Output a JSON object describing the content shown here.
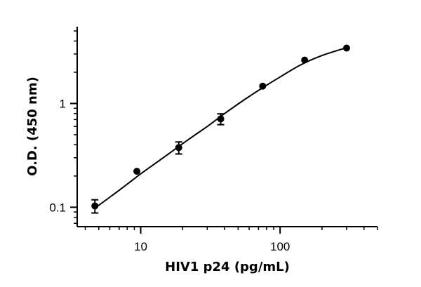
{
  "chart_data": {
    "type": "scatter",
    "title": "",
    "xlabel": "HIV1 p24 (pg/mL)",
    "ylabel": "O.D. (450 nm)",
    "x_scale": "log",
    "y_scale": "log",
    "xlim": [
      3.5,
      500
    ],
    "ylim": [
      0.065,
      5.5
    ],
    "x_ticks": [
      {
        "value": 10,
        "label": "10"
      },
      {
        "value": 100,
        "label": "100"
      }
    ],
    "y_ticks": [
      {
        "value": 0.1,
        "label": "0.1"
      },
      {
        "value": 1,
        "label": "1"
      }
    ],
    "grid": false,
    "legend": "none",
    "series": [
      {
        "points": [
          {
            "x": 4.69,
            "y": 0.103,
            "err": 0.015
          },
          {
            "x": 9.38,
            "y": 0.222,
            "err": 0
          },
          {
            "x": 18.75,
            "y": 0.376,
            "err": 0.05
          },
          {
            "x": 37.5,
            "y": 0.71,
            "err": 0.085
          },
          {
            "x": 75,
            "y": 1.47,
            "err": 0
          },
          {
            "x": 150,
            "y": 2.62,
            "err": 0
          },
          {
            "x": 300,
            "y": 3.42,
            "err": 0
          }
        ],
        "fit_curve": [
          [
            4.69,
            0.098
          ],
          [
            6,
            0.125
          ],
          [
            8,
            0.167
          ],
          [
            10,
            0.21
          ],
          [
            13,
            0.27
          ],
          [
            17,
            0.35
          ],
          [
            22,
            0.45
          ],
          [
            30,
            0.6
          ],
          [
            40,
            0.8
          ],
          [
            55,
            1.08
          ],
          [
            75,
            1.42
          ],
          [
            100,
            1.8
          ],
          [
            140,
            2.35
          ],
          [
            200,
            2.9
          ],
          [
            300,
            3.45
          ]
        ]
      }
    ]
  }
}
